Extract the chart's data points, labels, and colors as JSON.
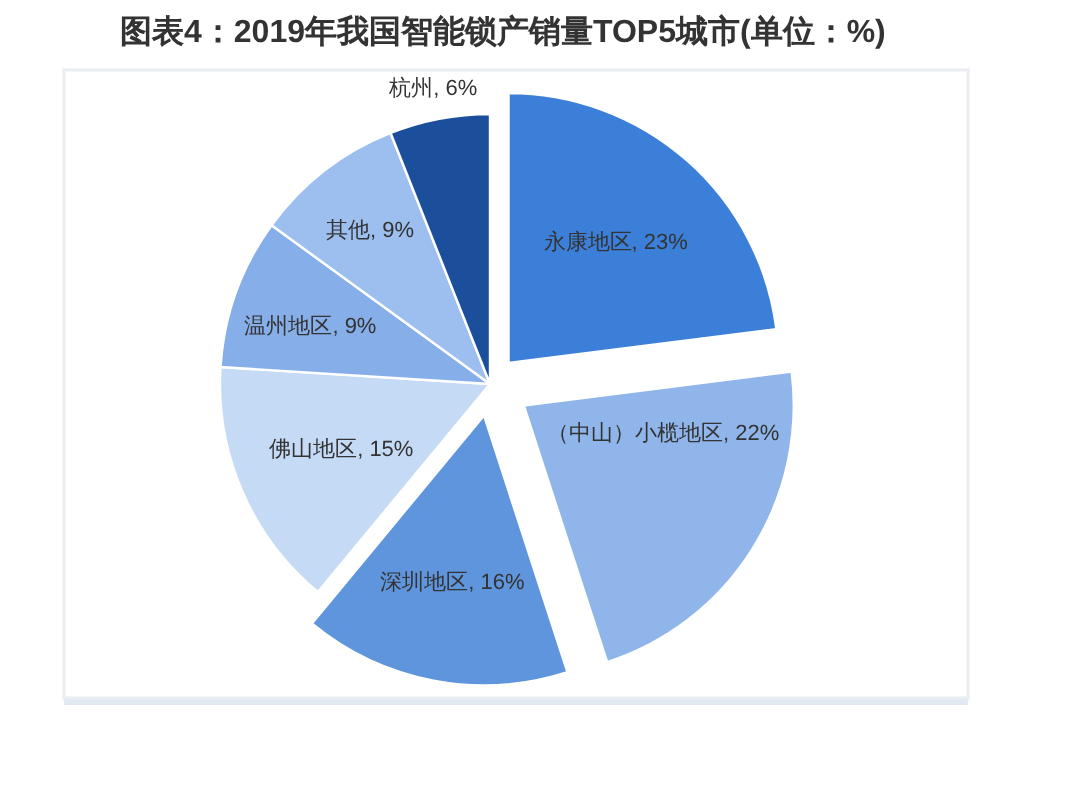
{
  "chart_data": {
    "type": "pie",
    "title": "图表4：2019年我国智能锁产销量TOP5城市(单位：%)",
    "categories": [
      "永康地区",
      "（中山）小榄地区",
      "深圳地区",
      "佛山地区",
      "温州地区",
      "其他",
      "杭州"
    ],
    "values": [
      23,
      22,
      16,
      15,
      9,
      9,
      6
    ],
    "colors": [
      "#3c7fd8",
      "#8fb5ea",
      "#5f95dc",
      "#c5daf5",
      "#86aee8",
      "#9dbff0",
      "#1b4f9c"
    ],
    "value_labels": [
      "23%",
      "22%",
      "16%",
      "15%",
      "9%",
      "9%",
      "6%"
    ]
  }
}
